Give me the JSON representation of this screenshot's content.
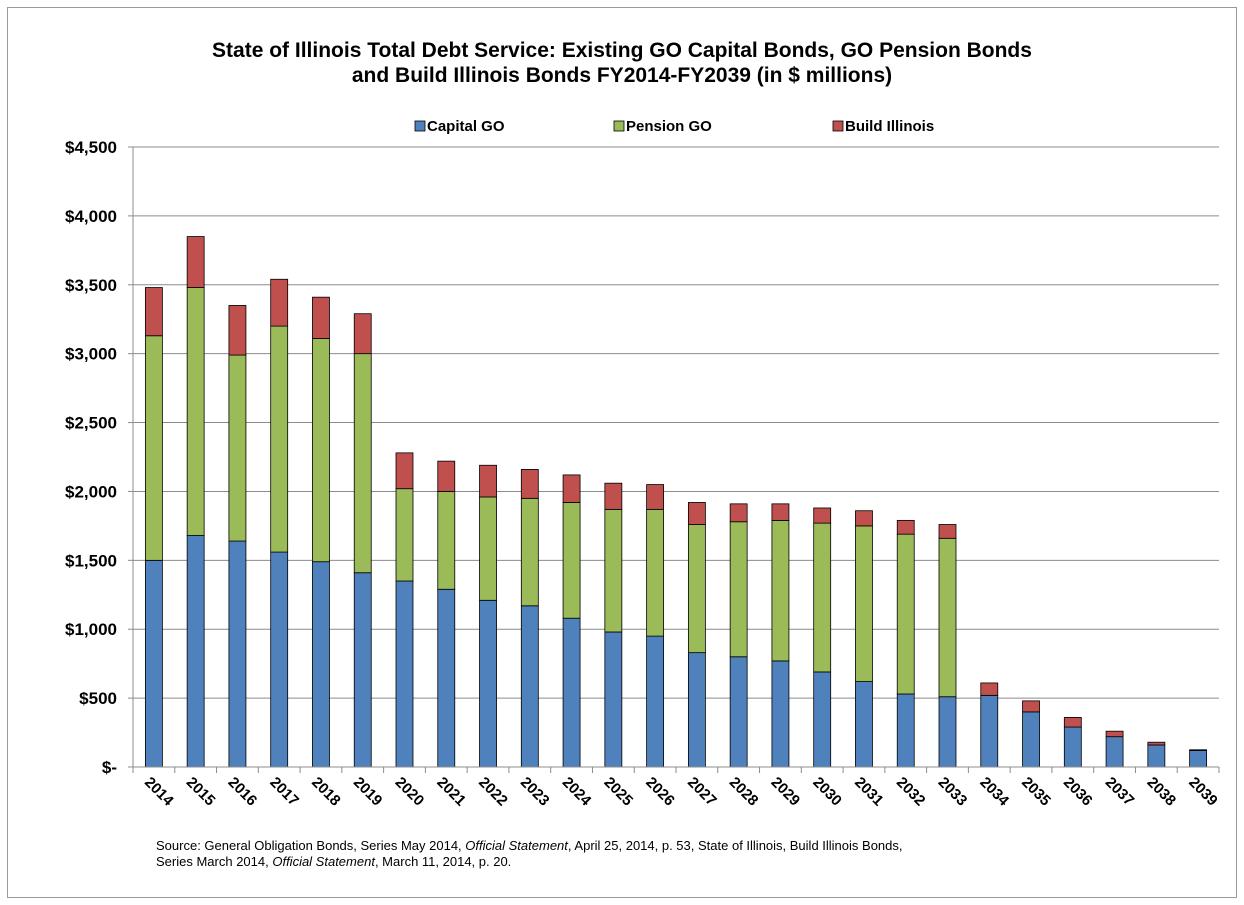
{
  "chart_data": {
    "type": "bar",
    "stacked": true,
    "title_line1": "State of Illinois Total Debt Service: Existing GO Capital Bonds, GO Pension Bonds",
    "title_line2": "and Build Illinois Bonds FY2014-FY2039 (in $ millions)",
    "xlabel": "",
    "ylabel": "",
    "ylim": [
      0,
      4500
    ],
    "yticks": [
      {
        "value": 0,
        "label": "$-"
      },
      {
        "value": 500,
        "label": "$500"
      },
      {
        "value": 1000,
        "label": "$1,000"
      },
      {
        "value": 1500,
        "label": "$1,500"
      },
      {
        "value": 2000,
        "label": "$2,000"
      },
      {
        "value": 2500,
        "label": "$2,500"
      },
      {
        "value": 3000,
        "label": "$3,000"
      },
      {
        "value": 3500,
        "label": "$3,500"
      },
      {
        "value": 4000,
        "label": "$4,000"
      },
      {
        "value": 4500,
        "label": "$4,500"
      }
    ],
    "grid": true,
    "legend_position": "top",
    "categories": [
      "2014",
      "2015",
      "2016",
      "2017",
      "2018",
      "2019",
      "2020",
      "2021",
      "2022",
      "2023",
      "2024",
      "2025",
      "2026",
      "2027",
      "2028",
      "2029",
      "2030",
      "2031",
      "2032",
      "2033",
      "2034",
      "2035",
      "2036",
      "2037",
      "2038",
      "2039"
    ],
    "series": [
      {
        "name": "Capital GO",
        "color": "#4f81bd",
        "values": [
          1500,
          1680,
          1640,
          1560,
          1490,
          1410,
          1350,
          1290,
          1210,
          1170,
          1080,
          980,
          950,
          830,
          800,
          770,
          690,
          620,
          530,
          510,
          520,
          400,
          290,
          220,
          160,
          120
        ]
      },
      {
        "name": "Pension GO",
        "color": "#9bbb59",
        "values": [
          1630,
          1800,
          1350,
          1640,
          1620,
          1590,
          670,
          710,
          750,
          780,
          840,
          890,
          920,
          930,
          980,
          1020,
          1080,
          1130,
          1160,
          1150,
          0,
          0,
          0,
          0,
          0,
          0
        ]
      },
      {
        "name": "Build Illinois",
        "color": "#c0504d",
        "values": [
          350,
          370,
          360,
          340,
          300,
          290,
          260,
          220,
          230,
          210,
          200,
          190,
          180,
          160,
          130,
          120,
          110,
          110,
          100,
          100,
          90,
          80,
          70,
          40,
          20,
          5
        ]
      }
    ]
  },
  "source": {
    "part1": "Source: General Obligation Bonds, Series May 2014, ",
    "italic1": "Official Statement",
    "part2": ", April 25, 2014, p. 53, State of Illinois, Build Illinois Bonds,",
    "part3": "Series March 2014, ",
    "italic2": "Official Statement",
    "part4": ", March 11, 2014, p. 20."
  }
}
